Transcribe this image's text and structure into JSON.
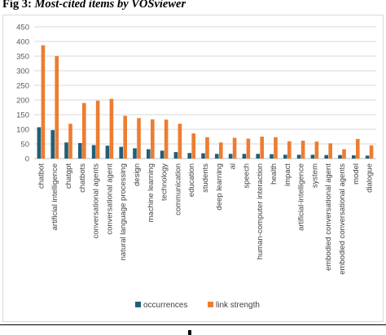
{
  "caption": {
    "prefix": "Fig 3: ",
    "title": "Most-cited items by VOSviewer"
  },
  "chart_data": {
    "type": "bar",
    "title": "",
    "xlabel": "",
    "ylabel": "",
    "ylim": [
      0,
      450
    ],
    "yticks": [
      0,
      50,
      100,
      150,
      200,
      250,
      300,
      350,
      400,
      450
    ],
    "grid": true,
    "legend_position": "bottom",
    "categories": [
      "chatbot",
      "artificial intelligence",
      "chatgpt",
      "chatbots",
      "conversational agents",
      "conversational agent",
      "natural language processing",
      "design",
      "machine learning",
      "technology",
      "communication",
      "education",
      "students",
      "deep learning",
      "ai",
      "speech",
      "human-computer interaction",
      "health",
      "impact",
      "artificial-intelligence",
      "system",
      "embodied conversational agent",
      "embodied conversational agents",
      "model",
      "dialogue"
    ],
    "series": [
      {
        "name": "occurrences",
        "color": "#1f5f7a",
        "values": [
          107,
          97,
          55,
          53,
          46,
          44,
          40,
          35,
          32,
          27,
          22,
          19,
          18,
          16,
          16,
          16,
          16,
          15,
          13,
          13,
          13,
          12,
          12,
          11,
          10
        ]
      },
      {
        "name": "link strength",
        "color": "#ed7d31",
        "values": [
          387,
          350,
          119,
          190,
          198,
          204,
          146,
          138,
          134,
          133,
          119,
          86,
          73,
          55,
          71,
          68,
          75,
          73,
          59,
          61,
          58,
          52,
          32,
          67,
          45
        ]
      }
    ]
  }
}
